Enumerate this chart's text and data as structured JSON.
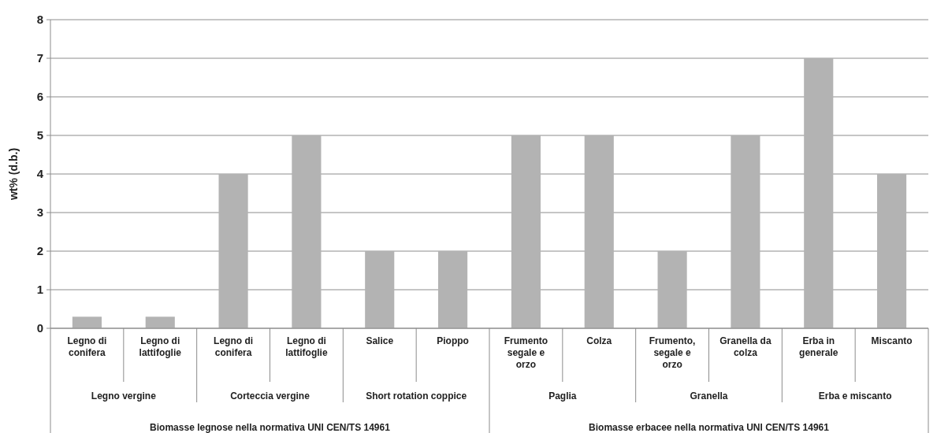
{
  "chart_data": {
    "type": "bar",
    "ylabel": "wt% (d.b.)",
    "categories": [
      "Legno di conifera",
      "Legno di lattifoglie",
      "Legno di conifera",
      "Legno di lattifoglie",
      "Salice",
      "Pioppo",
      "Frumento segale e orzo",
      "Colza",
      "Frumento, segale e orzo",
      "Granella da colza",
      "Erba in generale",
      "Miscanto"
    ],
    "values": [
      0.3,
      0.3,
      4,
      5,
      2,
      2,
      5,
      5,
      2,
      5,
      7,
      4
    ],
    "color": "#b3b3b3",
    "ylim": [
      0,
      8
    ],
    "yticks": [
      0,
      1,
      2,
      3,
      4,
      5,
      6,
      7,
      8
    ],
    "grid": "y",
    "annotations": [
      "Legno vergine",
      "Corteccia vergine",
      "Short rotation coppice",
      "Paglia",
      "Granella",
      "Erba e miscanto",
      "Biomasse legnose nella normativa UNI CEN/TS 14961",
      "Biomasse erbacee nella normativa UNI CEN/TS 14961"
    ]
  }
}
